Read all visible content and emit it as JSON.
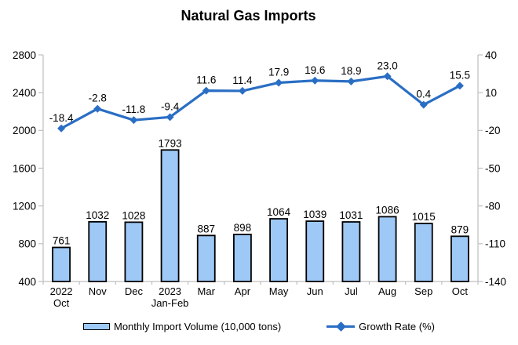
{
  "title": "Natural Gas Imports",
  "chart_data": {
    "type": "combo",
    "title": "Natural Gas Imports",
    "categories": [
      [
        "2022",
        "Oct"
      ],
      [
        "Nov"
      ],
      [
        "Dec"
      ],
      [
        "2023",
        "Jan-Feb"
      ],
      [
        "Mar"
      ],
      [
        "Apr"
      ],
      [
        "May"
      ],
      [
        "Jun"
      ],
      [
        "Jul"
      ],
      [
        "Aug"
      ],
      [
        "Sep"
      ],
      [
        "Oct"
      ]
    ],
    "series": [
      {
        "name": "Monthly Import Volume (10,000 tons)",
        "type": "bar",
        "axis": "left",
        "values": [
          761,
          1032,
          1028,
          1793,
          887,
          898,
          1064,
          1039,
          1031,
          1086,
          1015,
          879
        ]
      },
      {
        "name": "Growth Rate (%)",
        "type": "line",
        "axis": "right",
        "values": [
          -18.4,
          -2.8,
          -11.8,
          -9.4,
          11.6,
          11.4,
          17.9,
          19.6,
          18.9,
          23.0,
          0.4,
          15.5
        ]
      }
    ],
    "left_axis": {
      "min": 400,
      "max": 2800,
      "ticks": [
        400,
        800,
        1200,
        1600,
        2000,
        2400,
        2800
      ]
    },
    "right_axis": {
      "min": -140,
      "max": 40,
      "ticks": [
        -140,
        -110,
        -80,
        -50,
        -20,
        10,
        40
      ]
    },
    "grid": false,
    "legend_position": "bottom",
    "colors": {
      "bar_fill": "#9EC8F5",
      "bar_border": "#000000",
      "line": "#2A6EC4",
      "axis": "#BFBFBF",
      "text": "#000000"
    }
  }
}
